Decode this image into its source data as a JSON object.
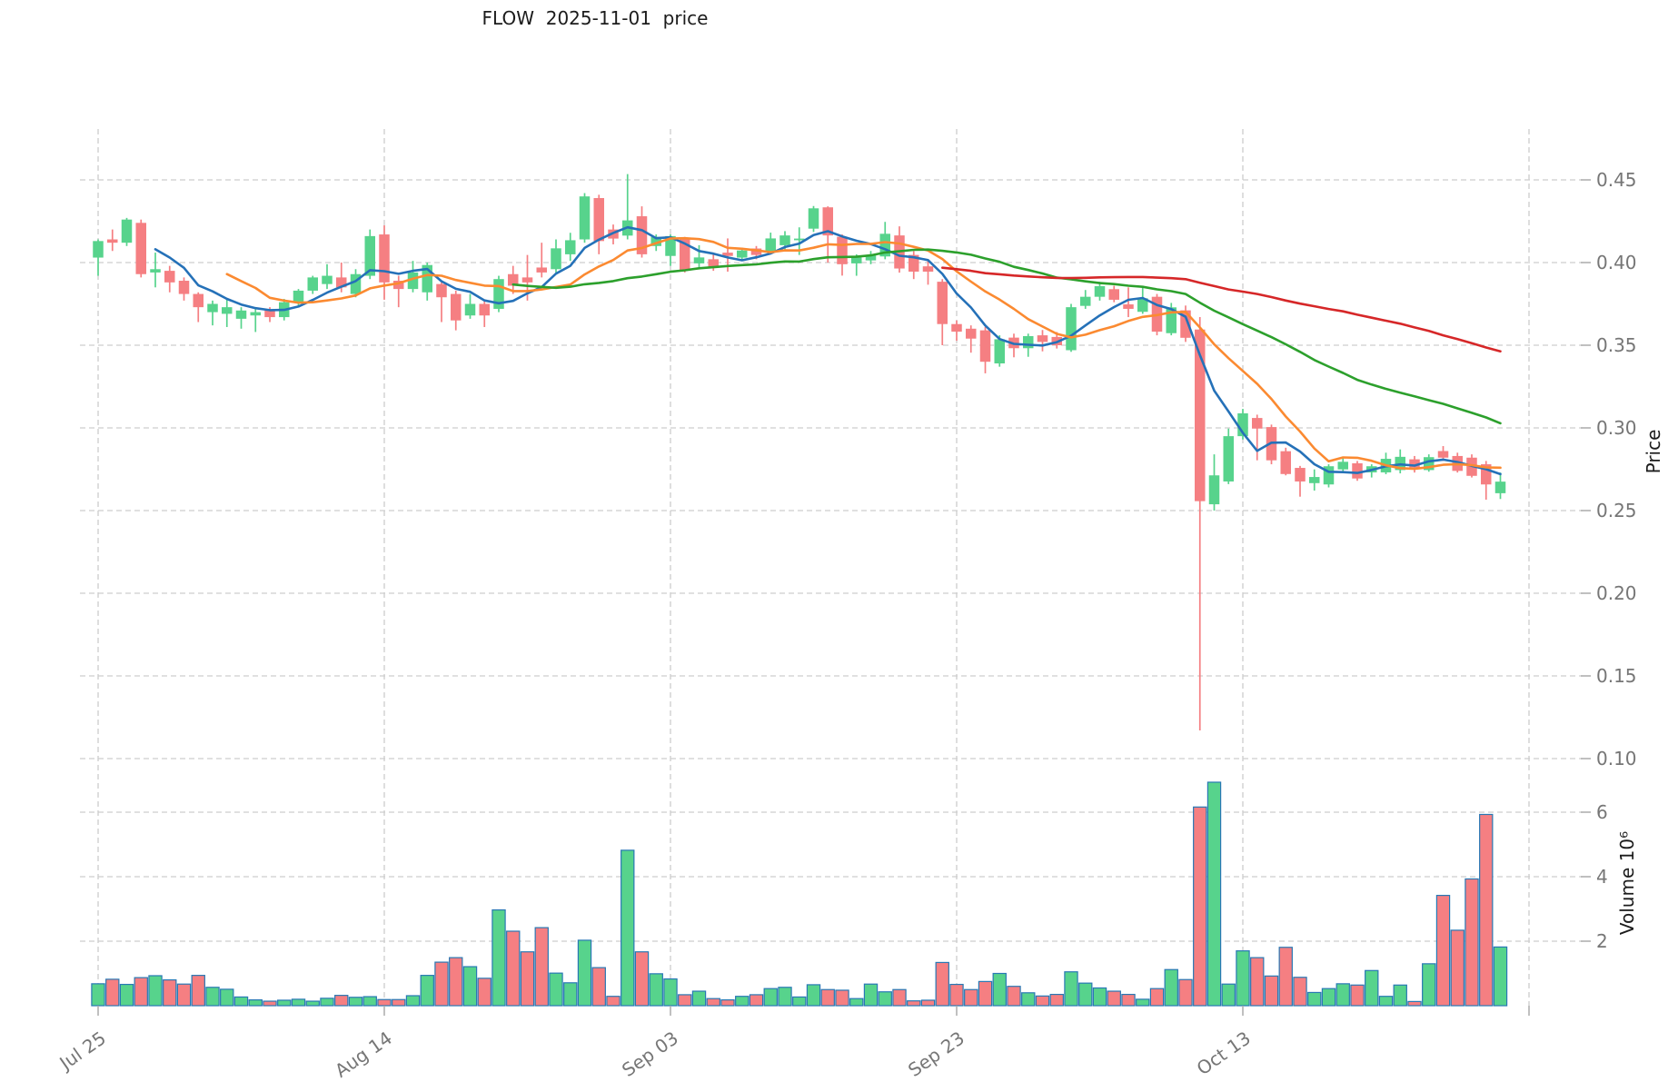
{
  "title": "FLOW  2025-11-01  price",
  "chart_data": {
    "type": "candlestick",
    "title": "FLOW  2025-11-01  price",
    "price_axis": {
      "label": "Price",
      "ticks": [
        0.45,
        0.4,
        0.35,
        0.3,
        0.25,
        0.2,
        0.15,
        0.1
      ]
    },
    "volume_axis": {
      "label": "Volume  10⁶",
      "ticks": [
        6,
        4,
        2
      ],
      "unit": 1000000
    },
    "x_ticks": [
      {
        "date": "2025-07-25",
        "label": "Jul 25"
      },
      {
        "date": "2025-08-14",
        "label": "Aug 14"
      },
      {
        "date": "2025-09-03",
        "label": "Sep 03"
      },
      {
        "date": "2025-09-23",
        "label": "Sep 23"
      },
      {
        "date": "2025-10-13",
        "label": "Oct 13"
      },
      {
        "date": "2025-11-02",
        "label": ""
      }
    ],
    "moving_averages": [
      {
        "window": 5,
        "color": "#2571b8"
      },
      {
        "window": 10,
        "color": "#fb8a31"
      },
      {
        "window": 30,
        "color": "#2ca02c"
      },
      {
        "window": 60,
        "color": "#d62728"
      }
    ],
    "ohlcv_columns": [
      "date",
      "open",
      "high",
      "low",
      "close",
      "volume_millions"
    ],
    "ohlcv": [
      [
        "2025-07-25",
        0.403,
        0.414,
        0.392,
        0.413,
        0.68
      ],
      [
        "2025-07-26",
        0.414,
        0.42,
        0.407,
        0.412,
        0.82
      ],
      [
        "2025-07-27",
        0.412,
        0.427,
        0.41,
        0.426,
        0.66
      ],
      [
        "2025-07-28",
        0.424,
        0.426,
        0.391,
        0.393,
        0.87
      ],
      [
        "2025-07-29",
        0.394,
        0.406,
        0.385,
        0.396,
        0.93
      ],
      [
        "2025-07-30",
        0.395,
        0.398,
        0.382,
        0.388,
        0.8
      ],
      [
        "2025-07-31",
        0.389,
        0.391,
        0.377,
        0.381,
        0.67
      ],
      [
        "2025-08-01",
        0.381,
        0.382,
        0.364,
        0.373,
        0.94
      ],
      [
        "2025-08-02",
        0.37,
        0.377,
        0.362,
        0.375,
        0.57
      ],
      [
        "2025-08-03",
        0.369,
        0.378,
        0.361,
        0.373,
        0.51
      ],
      [
        "2025-08-04",
        0.366,
        0.373,
        0.36,
        0.371,
        0.27
      ],
      [
        "2025-08-05",
        0.368,
        0.372,
        0.358,
        0.37,
        0.18
      ],
      [
        "2025-08-06",
        0.371,
        0.373,
        0.364,
        0.367,
        0.14
      ],
      [
        "2025-08-07",
        0.367,
        0.378,
        0.365,
        0.376,
        0.17
      ],
      [
        "2025-08-08",
        0.376,
        0.384,
        0.373,
        0.383,
        0.2
      ],
      [
        "2025-08-09",
        0.383,
        0.392,
        0.381,
        0.391,
        0.14
      ],
      [
        "2025-08-10",
        0.387,
        0.399,
        0.384,
        0.392,
        0.23
      ],
      [
        "2025-08-11",
        0.391,
        0.4,
        0.382,
        0.385,
        0.32
      ],
      [
        "2025-08-12",
        0.381,
        0.396,
        0.379,
        0.393,
        0.26
      ],
      [
        "2025-08-13",
        0.392,
        0.42,
        0.39,
        0.416,
        0.28
      ],
      [
        "2025-08-14",
        0.417,
        0.4225,
        0.3775,
        0.388,
        0.19
      ],
      [
        "2025-08-15",
        0.389,
        0.392,
        0.373,
        0.384,
        0.19
      ],
      [
        "2025-08-16",
        0.384,
        0.401,
        0.382,
        0.394,
        0.31
      ],
      [
        "2025-08-17",
        0.382,
        0.4,
        0.377,
        0.3985,
        0.94
      ],
      [
        "2025-08-18",
        0.387,
        0.389,
        0.364,
        0.379,
        1.35
      ],
      [
        "2025-08-19",
        0.381,
        0.383,
        0.359,
        0.365,
        1.49
      ],
      [
        "2025-08-20",
        0.368,
        0.381,
        0.366,
        0.375,
        1.21
      ],
      [
        "2025-08-21",
        0.375,
        0.377,
        0.361,
        0.368,
        0.85
      ],
      [
        "2025-08-22",
        0.372,
        0.392,
        0.37,
        0.39,
        2.97
      ],
      [
        "2025-08-23",
        0.393,
        0.398,
        0.381,
        0.386,
        2.31
      ],
      [
        "2025-08-24",
        0.391,
        0.4046,
        0.377,
        0.388,
        1.67
      ],
      [
        "2025-08-25",
        0.397,
        0.412,
        0.391,
        0.394,
        2.42
      ],
      [
        "2025-08-26",
        0.396,
        0.414,
        0.394,
        0.4086,
        1.01
      ],
      [
        "2025-08-27",
        0.405,
        0.418,
        0.401,
        0.4135,
        0.71
      ],
      [
        "2025-08-28",
        0.414,
        0.442,
        0.412,
        0.44,
        2.03
      ],
      [
        "2025-08-29",
        0.439,
        0.441,
        0.405,
        0.413,
        1.18
      ],
      [
        "2025-08-30",
        0.42,
        0.423,
        0.411,
        0.4145,
        0.29
      ],
      [
        "2025-08-31",
        0.4163,
        0.4535,
        0.414,
        0.4255,
        4.82
      ],
      [
        "2025-09-01",
        0.428,
        0.434,
        0.403,
        0.405,
        1.67
      ],
      [
        "2025-09-02",
        0.41,
        0.417,
        0.407,
        0.4155,
        0.99
      ],
      [
        "2025-09-03",
        0.404,
        0.417,
        0.398,
        0.416,
        0.83
      ],
      [
        "2025-09-04",
        0.4146,
        0.4155,
        0.394,
        0.3954,
        0.34
      ],
      [
        "2025-09-05",
        0.3995,
        0.4105,
        0.397,
        0.4031,
        0.45
      ],
      [
        "2025-09-06",
        0.402,
        0.406,
        0.395,
        0.397,
        0.22
      ],
      [
        "2025-09-07",
        0.406,
        0.4146,
        0.3945,
        0.404,
        0.18
      ],
      [
        "2025-09-08",
        0.403,
        0.409,
        0.401,
        0.4073,
        0.29
      ],
      [
        "2025-09-09",
        0.4085,
        0.41,
        0.402,
        0.4046,
        0.34
      ],
      [
        "2025-09-10",
        0.407,
        0.4181,
        0.405,
        0.4146,
        0.53
      ],
      [
        "2025-09-11",
        0.4105,
        0.419,
        0.408,
        0.4164,
        0.57
      ],
      [
        "2025-09-12",
        0.4135,
        0.4213,
        0.4046,
        0.4145,
        0.27
      ],
      [
        "2025-09-13",
        0.4205,
        0.4342,
        0.4185,
        0.4328,
        0.65
      ],
      [
        "2025-09-14",
        0.4334,
        0.434,
        0.4,
        0.4164,
        0.5
      ],
      [
        "2025-09-15",
        0.4156,
        0.417,
        0.3921,
        0.399,
        0.48
      ],
      [
        "2025-09-16",
        0.3995,
        0.405,
        0.392,
        0.4031,
        0.22
      ],
      [
        "2025-09-17",
        0.4013,
        0.407,
        0.399,
        0.4046,
        0.67
      ],
      [
        "2025-09-18",
        0.4037,
        0.4246,
        0.402,
        0.4174,
        0.43
      ],
      [
        "2025-09-19",
        0.4164,
        0.4219,
        0.3939,
        0.3964,
        0.5
      ],
      [
        "2025-09-20",
        0.4046,
        0.407,
        0.39,
        0.3945,
        0.15
      ],
      [
        "2025-09-21",
        0.3977,
        0.402,
        0.3866,
        0.3945,
        0.17
      ],
      [
        "2025-09-22",
        0.3884,
        0.39,
        0.35,
        0.3628,
        1.34
      ],
      [
        "2025-09-23",
        0.3628,
        0.365,
        0.3527,
        0.3582,
        0.66
      ],
      [
        "2025-09-24",
        0.36,
        0.362,
        0.3455,
        0.354,
        0.5
      ],
      [
        "2025-09-25",
        0.359,
        0.361,
        0.333,
        0.34,
        0.75
      ],
      [
        "2025-09-26",
        0.339,
        0.356,
        0.337,
        0.3536,
        1.0
      ],
      [
        "2025-09-27",
        0.3546,
        0.357,
        0.3427,
        0.3482,
        0.6
      ],
      [
        "2025-09-28",
        0.3482,
        0.357,
        0.343,
        0.3555,
        0.4
      ],
      [
        "2025-09-29",
        0.356,
        0.3592,
        0.3463,
        0.352,
        0.3
      ],
      [
        "2025-09-30",
        0.355,
        0.358,
        0.348,
        0.35,
        0.35
      ],
      [
        "2025-10-01",
        0.347,
        0.375,
        0.346,
        0.373,
        1.05
      ],
      [
        "2025-10-02",
        0.3738,
        0.3834,
        0.372,
        0.3793,
        0.7
      ],
      [
        "2025-10-03",
        0.3793,
        0.3884,
        0.377,
        0.3857,
        0.55
      ],
      [
        "2025-10-04",
        0.3839,
        0.386,
        0.376,
        0.3775,
        0.45
      ],
      [
        "2025-10-05",
        0.3747,
        0.385,
        0.367,
        0.372,
        0.35
      ],
      [
        "2025-10-06",
        0.3702,
        0.3848,
        0.369,
        0.3784,
        0.2
      ],
      [
        "2025-10-07",
        0.3793,
        0.381,
        0.356,
        0.3582,
        0.53
      ],
      [
        "2025-10-08",
        0.3573,
        0.3756,
        0.356,
        0.3729,
        1.12
      ],
      [
        "2025-10-09",
        0.3711,
        0.374,
        0.352,
        0.3545,
        0.81
      ],
      [
        "2025-10-10",
        0.3595,
        0.367,
        0.117,
        0.2557,
        6.16
      ],
      [
        "2025-10-11",
        0.2538,
        0.284,
        0.25,
        0.2713,
        6.93
      ],
      [
        "2025-10-12",
        0.2676,
        0.2996,
        0.266,
        0.295,
        0.67
      ],
      [
        "2025-10-13",
        0.295,
        0.3115,
        0.293,
        0.3088,
        1.7
      ],
      [
        "2025-10-14",
        0.306,
        0.308,
        0.2804,
        0.2996,
        1.49
      ],
      [
        "2025-10-15",
        0.3005,
        0.302,
        0.278,
        0.2804,
        0.92
      ],
      [
        "2025-10-16",
        0.2859,
        0.288,
        0.2713,
        0.2721,
        1.81
      ],
      [
        "2025-10-17",
        0.2758,
        0.277,
        0.2584,
        0.2676,
        0.88
      ],
      [
        "2025-10-18",
        0.2666,
        0.2749,
        0.2621,
        0.2703,
        0.41
      ],
      [
        "2025-10-19",
        0.2658,
        0.278,
        0.264,
        0.2768,
        0.53
      ],
      [
        "2025-10-20",
        0.2749,
        0.282,
        0.273,
        0.2795,
        0.68
      ],
      [
        "2025-10-21",
        0.2786,
        0.28,
        0.268,
        0.2694,
        0.64
      ],
      [
        "2025-10-22",
        0.2731,
        0.278,
        0.27,
        0.2768,
        1.09
      ],
      [
        "2025-10-23",
        0.2731,
        0.285,
        0.272,
        0.2813,
        0.29
      ],
      [
        "2025-10-24",
        0.2745,
        0.287,
        0.2725,
        0.2825,
        0.64
      ],
      [
        "2025-10-25",
        0.281,
        0.283,
        0.273,
        0.276,
        0.13
      ],
      [
        "2025-10-26",
        0.2745,
        0.284,
        0.2735,
        0.2823,
        1.3
      ],
      [
        "2025-10-27",
        0.286,
        0.289,
        0.28,
        0.282,
        3.42
      ],
      [
        "2025-10-28",
        0.283,
        0.285,
        0.273,
        0.274,
        2.34
      ],
      [
        "2025-10-29",
        0.282,
        0.284,
        0.27,
        0.271,
        3.93
      ],
      [
        "2025-10-30",
        0.278,
        0.28,
        0.2566,
        0.2658,
        5.93
      ],
      [
        "2025-10-31",
        0.2605,
        0.273,
        0.257,
        0.2675,
        1.82
      ]
    ],
    "layout_hints": {
      "grid": true,
      "price_ylim": [
        0.08,
        0.482
      ],
      "volume_ylim_millions": [
        0,
        7.3
      ],
      "legend": false
    }
  },
  "colors": {
    "up_candle": "#57d38c",
    "down_candle": "#f57f82",
    "volume_bar_border": "#2878b4",
    "gridline": "#cdcdcd",
    "tick_label": "#767676",
    "axis_label": "#1c1c1c",
    "title": "#1c1c1c",
    "background": "#ffffff"
  }
}
